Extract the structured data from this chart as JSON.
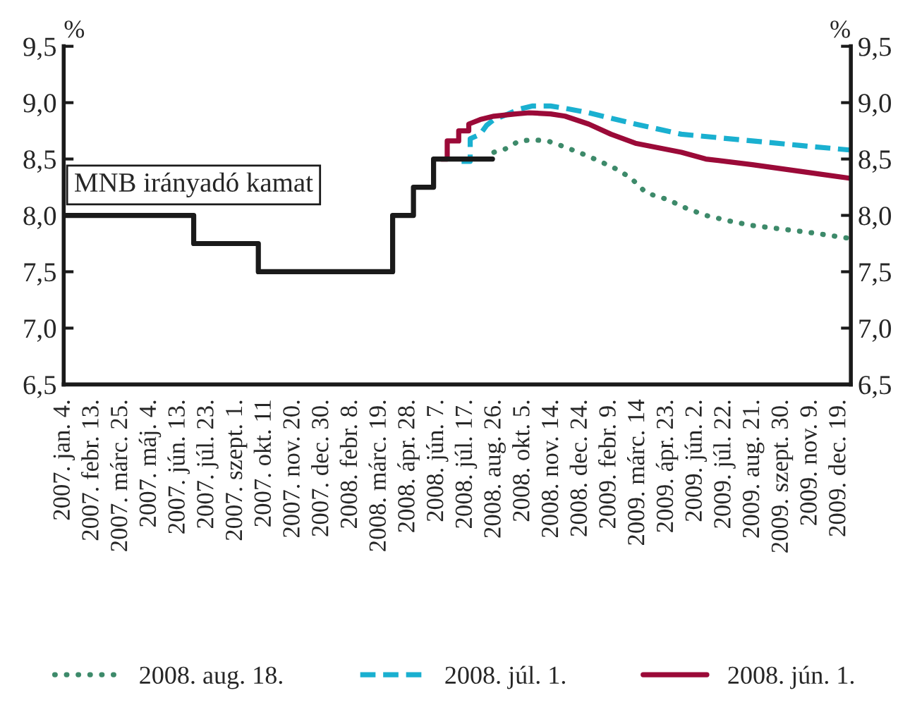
{
  "chart_data": {
    "type": "line",
    "ylabel": "%",
    "y2label": "%",
    "xlim": [
      "2007-01-04",
      "2010-01-04"
    ],
    "xticks": [
      {
        "value": "2007-01-04",
        "label": "2007. jan. 4."
      },
      {
        "value": "2007-02-13",
        "label": "2007. febr. 13."
      },
      {
        "value": "2007-03-25",
        "label": "2007. márc. 25."
      },
      {
        "value": "2007-05-04",
        "label": "2007. máj. 4."
      },
      {
        "value": "2007-06-13",
        "label": "2007. jún. 13."
      },
      {
        "value": "2007-07-23",
        "label": "2007. júl. 23."
      },
      {
        "value": "2007-09-01",
        "label": "2007. szept. 1."
      },
      {
        "value": "2007-10-11",
        "label": "2007. okt. 11"
      },
      {
        "value": "2007-11-20",
        "label": "2007. nov. 20."
      },
      {
        "value": "2007-12-30",
        "label": "2007. dec. 30."
      },
      {
        "value": "2008-02-08",
        "label": "2008. febr. 8."
      },
      {
        "value": "2008-03-19",
        "label": "2008. márc. 19."
      },
      {
        "value": "2008-04-28",
        "label": "2008. ápr. 28."
      },
      {
        "value": "2008-06-07",
        "label": "2008. jún. 7."
      },
      {
        "value": "2008-07-17",
        "label": "2008. júl. 17."
      },
      {
        "value": "2008-08-26",
        "label": "2008. aug. 26."
      },
      {
        "value": "2008-10-05",
        "label": "2008. okt. 5."
      },
      {
        "value": "2008-11-14",
        "label": "2008. nov. 14."
      },
      {
        "value": "2008-12-24",
        "label": "2008. dec. 24."
      },
      {
        "value": "2009-02-02",
        "label": "2009. febr. 9."
      },
      {
        "value": "2009-03-14",
        "label": "2009. márc. 14"
      },
      {
        "value": "2009-04-23",
        "label": "2009. ápr. 23."
      },
      {
        "value": "2009-06-02",
        "label": "2009. jún. 2."
      },
      {
        "value": "2009-07-12",
        "label": "2009. júl. 22."
      },
      {
        "value": "2009-08-21",
        "label": "2009. aug. 21."
      },
      {
        "value": "2009-09-30",
        "label": "2009. szept. 30."
      },
      {
        "value": "2009-11-09",
        "label": "2009. nov. 9."
      },
      {
        "value": "2009-12-19",
        "label": "2009. dec. 19."
      }
    ],
    "ylim": [
      6.5,
      9.5
    ],
    "yticks": [
      {
        "value": 6.5,
        "label": "6,5"
      },
      {
        "value": 7.0,
        "label": "7,0"
      },
      {
        "value": 7.5,
        "label": "7,5"
      },
      {
        "value": 8.0,
        "label": "8,0"
      },
      {
        "value": 8.5,
        "label": "8,5"
      },
      {
        "value": 9.0,
        "label": "9,0"
      },
      {
        "value": 9.5,
        "label": "9,5"
      }
    ],
    "y2lim": [
      6.5,
      9.5
    ],
    "y2ticks": [
      {
        "value": 6.5,
        "label": "6,5"
      },
      {
        "value": 7.0,
        "label": "7,0"
      },
      {
        "value": 7.5,
        "label": "7,5"
      },
      {
        "value": 8.0,
        "label": "8,0"
      },
      {
        "value": 8.5,
        "label": "8,5"
      },
      {
        "value": 9.0,
        "label": "9,0"
      },
      {
        "value": 9.5,
        "label": "9,5"
      }
    ],
    "grid": false,
    "legend": "bottom",
    "marker": "none",
    "annotations": [
      "MNB irányadó kamat"
    ],
    "series": [
      {
        "name": "2008. aug. 18.",
        "color": "#3d8a6a",
        "line_style": "dotted",
        "x": [
          "2008-08-25",
          "2008-09-10",
          "2008-09-29",
          "2008-10-19",
          "2008-11-08",
          "2008-11-26",
          "2008-12-21",
          "2009-01-16",
          "2009-02-12",
          "2009-03-04",
          "2009-03-25",
          "2009-04-24",
          "2009-05-21",
          "2009-06-16",
          "2009-07-19",
          "2009-08-20",
          "2009-09-28",
          "2009-11-06",
          "2009-12-29"
        ],
        "values": [
          8.56,
          8.59,
          8.66,
          8.67,
          8.66,
          8.62,
          8.56,
          8.49,
          8.41,
          8.33,
          8.2,
          8.14,
          8.06,
          8.0,
          7.95,
          7.91,
          7.88,
          7.85,
          7.8
        ]
      },
      {
        "name": "2008. júl. 1.",
        "color": "#1ab0d0",
        "line_style": "dashed",
        "x": [
          "2008-07-11",
          "2008-07-23",
          "2008-07-23",
          "2008-08-06",
          "2008-08-15",
          "2008-08-25",
          "2008-09-14",
          "2008-09-28",
          "2008-10-17",
          "2008-11-12",
          "2008-12-02",
          "2009-01-04",
          "2009-03-10",
          "2009-05-13",
          "2009-07-19",
          "2009-10-26",
          "2010-01-02"
        ],
        "values": [
          8.48,
          8.48,
          8.68,
          8.72,
          8.8,
          8.85,
          8.9,
          8.94,
          8.97,
          8.97,
          8.95,
          8.91,
          8.81,
          8.72,
          8.68,
          8.62,
          8.58
        ]
      },
      {
        "name": "2008. jún. 1.",
        "color": "#9b0a38",
        "line_style": "solid",
        "x": [
          "2008-06-13",
          "2008-06-21",
          "2008-06-21",
          "2008-07-07",
          "2008-07-07",
          "2008-07-21",
          "2008-07-21",
          "2008-08-06",
          "2008-08-25",
          "2008-09-24",
          "2008-10-13",
          "2008-11-12",
          "2008-12-02",
          "2009-01-04",
          "2009-02-04",
          "2009-03-10",
          "2009-05-13",
          "2009-06-16",
          "2009-08-20",
          "2009-10-26",
          "2010-01-02"
        ],
        "values": [
          8.5,
          8.5,
          8.66,
          8.66,
          8.75,
          8.75,
          8.81,
          8.85,
          8.88,
          8.9,
          8.91,
          8.9,
          8.88,
          8.81,
          8.72,
          8.64,
          8.56,
          8.5,
          8.45,
          8.39,
          8.33
        ]
      },
      {
        "type": "step",
        "color": "#1a1a1a",
        "line_style": "solid",
        "x": [
          "2007-01-04",
          "2007-07-04",
          "2007-10-02",
          "2008-04-06",
          "2008-05-05",
          "2008-06-02",
          "2008-08-23"
        ],
        "values": [
          8.0,
          7.75,
          7.5,
          8.0,
          8.25,
          8.5,
          8.5
        ]
      }
    ]
  }
}
